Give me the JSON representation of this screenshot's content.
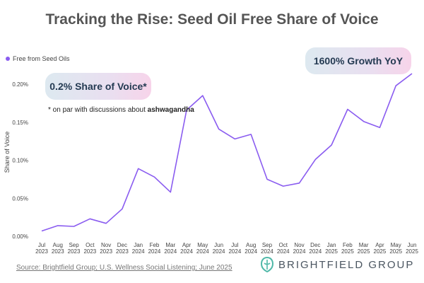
{
  "chart_data": {
    "type": "line",
    "title": "Tracking the Rise: Seed Oil Free Share of Voice",
    "ylabel": "Share of Voice",
    "xlabel": "",
    "x_months": [
      "Jul",
      "Aug",
      "Sep",
      "Oct",
      "Nov",
      "Dec",
      "Jan",
      "Feb",
      "Mar",
      "Apr",
      "May",
      "Jun",
      "Jul",
      "Aug",
      "Sep",
      "Oct",
      "Nov",
      "Dec",
      "Jan",
      "Feb",
      "Mar",
      "Apr",
      "May",
      "Jun"
    ],
    "x_years": [
      "2023",
      "2023",
      "2023",
      "2023",
      "2023",
      "2023",
      "2024",
      "2024",
      "2024",
      "2024",
      "2024",
      "2024",
      "2024",
      "2024",
      "2024",
      "2024",
      "2024",
      "2024",
      "2025",
      "2025",
      "2025",
      "2025",
      "2025",
      "2025"
    ],
    "y_ticks": [
      "0.00%",
      "0.05%",
      "0.10%",
      "0.15%",
      "0.20%"
    ],
    "ylim": [
      0,
      0.22
    ],
    "grid": false,
    "legend_position": "top-left",
    "series": [
      {
        "name": "Free from Seed Oils",
        "color": "#8a5cf0",
        "values": [
          0.007,
          0.014,
          0.013,
          0.023,
          0.017,
          0.036,
          0.089,
          0.078,
          0.058,
          0.166,
          0.185,
          0.141,
          0.128,
          0.134,
          0.075,
          0.066,
          0.07,
          0.101,
          0.12,
          0.167,
          0.151,
          0.143,
          0.198,
          0.214
        ]
      }
    ],
    "annotations": {
      "left_callout": "0.2% Share of Voice*",
      "footnote_prefix": "* on par with discussions about ",
      "footnote_bold": "ashwagandha",
      "right_callout": "1600% Growth YoY"
    }
  },
  "footer": {
    "source": "Source: Brightfield Group; U.S. Wellness Social Listening; June 2025",
    "brand": "BRIGHTFIELD GROUP",
    "brand_logo_icon": "brightfield-logo-icon",
    "brand_color": "#4fb8a8"
  }
}
